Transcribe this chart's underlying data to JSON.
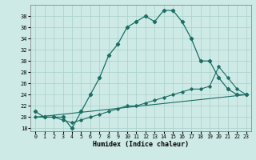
{
  "xlabel": "Humidex (Indice chaleur)",
  "bg_color": "#ceeae6",
  "grid_color": "#aacfcc",
  "line_color": "#1a6e64",
  "xlim": [
    -0.5,
    23.5
  ],
  "ylim": [
    17.5,
    40
  ],
  "yticks": [
    18,
    20,
    22,
    24,
    26,
    28,
    30,
    32,
    34,
    36,
    38
  ],
  "xticks": [
    0,
    1,
    2,
    3,
    4,
    5,
    6,
    7,
    8,
    9,
    10,
    11,
    12,
    13,
    14,
    15,
    16,
    17,
    18,
    19,
    20,
    21,
    22,
    23
  ],
  "series1_x": [
    0,
    1,
    2,
    3,
    4,
    5,
    6,
    7,
    8,
    9,
    10,
    11,
    12,
    13,
    14,
    15,
    16,
    17,
    18,
    19,
    20,
    21,
    22,
    23
  ],
  "series1_y": [
    21,
    20,
    20,
    20,
    18,
    21,
    24,
    27,
    31,
    33,
    36,
    37,
    38,
    37,
    39,
    39,
    37,
    34,
    30,
    30,
    27,
    25,
    24,
    24
  ],
  "series2_x": [
    0,
    1,
    2,
    3,
    4,
    5,
    6,
    7,
    8,
    9,
    10,
    11,
    12,
    13,
    14,
    15,
    16,
    17,
    18,
    19,
    20,
    21,
    22,
    23
  ],
  "series2_y": [
    20,
    20,
    20,
    19.5,
    19,
    19.5,
    20,
    20.5,
    21,
    21.5,
    22,
    22,
    22.5,
    23,
    23.5,
    24,
    24.5,
    25,
    25,
    25.5,
    29,
    27,
    25,
    24
  ],
  "series3_x": [
    0,
    23
  ],
  "series3_y": [
    20,
    24
  ]
}
